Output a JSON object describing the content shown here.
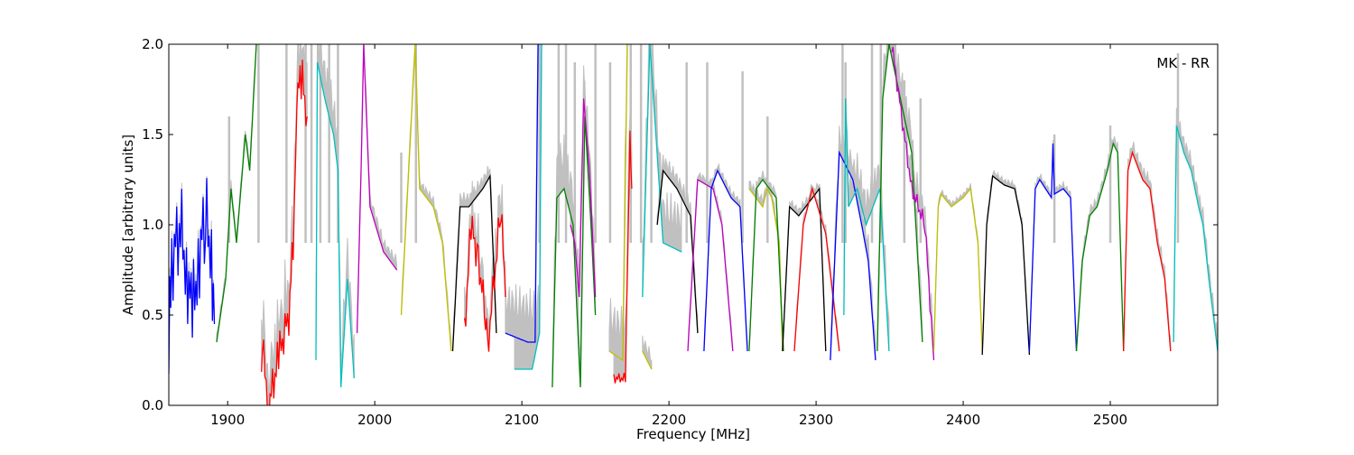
{
  "chart_data": {
    "type": "line",
    "title": "",
    "annotation": "MK - RR",
    "xlabel": "Frequency [MHz]",
    "ylabel": "Amplitude [arbitrary units]",
    "xlim": [
      1860,
      2573
    ],
    "ylim": [
      0.0,
      2.0
    ],
    "xticks": [
      1900,
      2000,
      2100,
      2200,
      2300,
      2400,
      2500
    ],
    "yticks": [
      0.0,
      0.5,
      1.0,
      1.5,
      2.0
    ],
    "xtick_labels": [
      "1900",
      "2000",
      "2100",
      "2200",
      "2300",
      "2400",
      "2500"
    ],
    "ytick_labels": [
      "0.0",
      "0.5",
      "1.0",
      "1.5",
      "2.0"
    ],
    "grid": false,
    "background_color": "#c0c0c0",
    "colors": {
      "b": "#0000ff",
      "g": "#008000",
      "r": "#ff0000",
      "c": "#00bfbf",
      "m": "#bf00bf",
      "y": "#bfbf00",
      "k": "#000000",
      "gray": "#c0c0c0"
    },
    "series": [
      {
        "name": "band-01",
        "color": "b",
        "ripple": 0.25,
        "excess": 0.05,
        "points": [
          [
            1860,
            0.3
          ],
          [
            1862,
            0.8
          ],
          [
            1868,
            1.0
          ],
          [
            1872,
            0.75
          ],
          [
            1876,
            0.5
          ],
          [
            1880,
            0.8
          ],
          [
            1885,
            1.05
          ],
          [
            1889,
            0.85
          ],
          [
            1891,
            0.45
          ]
        ]
      },
      {
        "name": "band-02",
        "color": "g",
        "ripple": 0,
        "excess": 0.05,
        "points": [
          [
            1892.5,
            0.35
          ],
          [
            1898.7,
            0.7
          ],
          [
            1902.3,
            1.2
          ],
          [
            1906,
            0.9
          ],
          [
            1912,
            1.5
          ],
          [
            1915,
            1.3
          ],
          [
            1919.5,
            2.0
          ]
        ]
      },
      {
        "name": "band-03",
        "color": "r",
        "ripple": 0.12,
        "excess": 0.3,
        "points": [
          [
            1923,
            0.3
          ],
          [
            1924.4,
            0.25
          ],
          [
            1928,
            0.0
          ],
          [
            1935.5,
            0.3
          ],
          [
            1941.6,
            0.5
          ],
          [
            1945.3,
            1.0
          ],
          [
            1947,
            1.75
          ],
          [
            1950.8,
            1.8
          ],
          [
            1954,
            1.6
          ]
        ]
      },
      {
        "name": "band-04",
        "color": "c",
        "ripple": 0,
        "excess": 0.25,
        "points": [
          [
            1960,
            0.25
          ],
          [
            1961,
            1.9
          ],
          [
            1966,
            1.7
          ],
          [
            1972,
            1.5
          ],
          [
            1975,
            1.3
          ],
          [
            1977,
            0.1
          ],
          [
            1981.5,
            0.7
          ],
          [
            1986,
            0.15
          ]
        ]
      },
      {
        "name": "band-05",
        "color": "m",
        "ripple": 0,
        "excess": 0.08,
        "points": [
          [
            1988,
            0.4
          ],
          [
            1990.7,
            1.3
          ],
          [
            1992.5,
            2.0
          ],
          [
            1996.8,
            1.1
          ],
          [
            2006,
            0.85
          ],
          [
            2015,
            0.75
          ]
        ]
      },
      {
        "name": "band-06",
        "color": "y",
        "ripple": 0,
        "excess": 0.06,
        "points": [
          [
            2018,
            0.5
          ],
          [
            2027.5,
            2.0
          ],
          [
            2030.5,
            1.2
          ],
          [
            2039.8,
            1.1
          ],
          [
            2046,
            0.9
          ],
          [
            2052,
            0.3
          ]
        ]
      },
      {
        "name": "band-07",
        "color": "k",
        "ripple": 0,
        "excess": 0.08,
        "points": [
          [
            2053,
            0.3
          ],
          [
            2058,
            1.1
          ],
          [
            2064,
            1.1
          ],
          [
            2073.5,
            1.2
          ],
          [
            2078.4,
            1.27
          ],
          [
            2082.7,
            0.4
          ]
        ]
      },
      {
        "name": "band-08",
        "color": "r",
        "ripple": 0.1,
        "excess": 0.2,
        "points": [
          [
            2061,
            0.4
          ],
          [
            2065.5,
            1.0
          ],
          [
            2070.4,
            0.8
          ],
          [
            2075.3,
            0.5
          ],
          [
            2076.6,
            0.3
          ],
          [
            2085.8,
            1.1
          ],
          [
            2088.8,
            0.6
          ]
        ]
      },
      {
        "name": "band-09",
        "color": "b",
        "ripple": 0,
        "excess": 0.3,
        "points": [
          [
            2088.8,
            0.4
          ],
          [
            2104,
            0.35
          ],
          [
            2109,
            0.35
          ],
          [
            2111,
            2.0
          ]
        ]
      },
      {
        "name": "band-10",
        "color": "c",
        "ripple": 0,
        "excess": 0.35,
        "points": [
          [
            2095,
            0.2
          ],
          [
            2107,
            0.2
          ],
          [
            2112,
            0.4
          ],
          [
            2113.4,
            2.0
          ]
        ]
      },
      {
        "name": "band-11",
        "color": "g",
        "ripple": 0,
        "excess": 0.3,
        "points": [
          [
            2120.7,
            0.1
          ],
          [
            2123.8,
            1.15
          ],
          [
            2128.7,
            1.2
          ],
          [
            2134.8,
            1.0
          ],
          [
            2139.8,
            0.1
          ],
          [
            2142.8,
            1.6
          ],
          [
            2147,
            1.0
          ],
          [
            2150,
            0.5
          ]
        ]
      },
      {
        "name": "band-12",
        "color": "m",
        "ripple": 0,
        "excess": 0.2,
        "points": [
          [
            2133,
            1.0
          ],
          [
            2136,
            0.9
          ],
          [
            2139,
            0.6
          ],
          [
            2142,
            1.7
          ],
          [
            2146,
            1.3
          ],
          [
            2150,
            0.6
          ]
        ]
      },
      {
        "name": "band-13",
        "color": "y",
        "ripple": 0,
        "excess": 0.3,
        "points": [
          [
            2159.4,
            0.3
          ],
          [
            2168.6,
            0.25
          ],
          [
            2171.7,
            2.0
          ]
        ]
      },
      {
        "name": "band-14",
        "color": "r",
        "ripple": 0.03,
        "excess": 0.4,
        "points": [
          [
            2162.5,
            0.15
          ],
          [
            2170.4,
            0.15
          ],
          [
            2173.5,
            1.5
          ],
          [
            2174.7,
            1.2
          ]
        ]
      },
      {
        "name": "band-15",
        "color": "c",
        "ripple": 0,
        "excess": 0.3,
        "points": [
          [
            2182,
            0.6
          ],
          [
            2187,
            2.0
          ],
          [
            2196,
            0.9
          ],
          [
            2208.5,
            0.85
          ]
        ]
      },
      {
        "name": "band-16",
        "color": "y",
        "ripple": 0,
        "excess": 0.1,
        "points": [
          [
            2182,
            0.3
          ],
          [
            2188.2,
            0.2
          ]
        ]
      },
      {
        "name": "band-17",
        "color": "k",
        "ripple": 0,
        "excess": 0.1,
        "points": [
          [
            2192,
            1.0
          ],
          [
            2196,
            1.3
          ],
          [
            2205.4,
            1.2
          ],
          [
            2214.6,
            1.05
          ],
          [
            2219.5,
            0.4
          ]
        ]
      },
      {
        "name": "band-18",
        "color": "m",
        "ripple": 0,
        "excess": 0.05,
        "points": [
          [
            2212.8,
            0.3
          ],
          [
            2219.5,
            1.25
          ],
          [
            2230,
            1.2
          ],
          [
            2236,
            1.0
          ],
          [
            2243.4,
            0.3
          ]
        ]
      },
      {
        "name": "band-19",
        "color": "b",
        "ripple": 0,
        "excess": 0.05,
        "points": [
          [
            2223.8,
            0.3
          ],
          [
            2228.7,
            1.2
          ],
          [
            2233,
            1.3
          ],
          [
            2242.2,
            1.15
          ],
          [
            2248.3,
            1.1
          ],
          [
            2253.3,
            0.3
          ]
        ]
      },
      {
        "name": "band-20",
        "color": "y",
        "ripple": 0,
        "excess": 0.06,
        "points": [
          [
            2254.5,
            1.2
          ],
          [
            2263.7,
            1.1
          ],
          [
            2266.8,
            1.2
          ],
          [
            2269.8,
            1.15
          ],
          [
            2275,
            0.9
          ],
          [
            2277.2,
            0.3
          ]
        ]
      },
      {
        "name": "band-21",
        "color": "g",
        "ripple": 0,
        "excess": 0.05,
        "points": [
          [
            2254.5,
            0.3
          ],
          [
            2259.4,
            1.2
          ],
          [
            2263.7,
            1.25
          ],
          [
            2272.9,
            1.15
          ],
          [
            2277.8,
            0.3
          ]
        ]
      },
      {
        "name": "band-22",
        "color": "k",
        "ripple": 0,
        "excess": 0.05,
        "points": [
          [
            2277.2,
            0.3
          ],
          [
            2282,
            1.1
          ],
          [
            2288.2,
            1.05
          ],
          [
            2302.3,
            1.2
          ],
          [
            2306.6,
            0.3
          ]
        ]
      },
      {
        "name": "band-23",
        "color": "r",
        "ripple": 0,
        "excess": 0.05,
        "points": [
          [
            2285.2,
            0.3
          ],
          [
            2291.3,
            1.0
          ],
          [
            2297.4,
            1.2
          ],
          [
            2306.6,
            0.95
          ],
          [
            2315.8,
            0.3
          ]
        ]
      },
      {
        "name": "band-24",
        "color": "b",
        "ripple": 0,
        "excess": 0.15,
        "points": [
          [
            2309.7,
            0.25
          ],
          [
            2315.8,
            1.4
          ],
          [
            2325,
            1.25
          ],
          [
            2331,
            1.0
          ],
          [
            2335.5,
            0.8
          ],
          [
            2340.4,
            0.25
          ]
        ]
      },
      {
        "name": "band-25",
        "color": "c",
        "ripple": 0,
        "excess": 0.2,
        "points": [
          [
            2318.9,
            0.5
          ],
          [
            2320,
            1.7
          ],
          [
            2322,
            1.1
          ],
          [
            2328,
            1.2
          ],
          [
            2334,
            1.0
          ],
          [
            2343.4,
            1.2
          ],
          [
            2349.6,
            0.3
          ]
        ]
      },
      {
        "name": "band-26",
        "color": "g",
        "ripple": 0,
        "excess": 0.2,
        "points": [
          [
            2341.6,
            0.3
          ],
          [
            2345.3,
            1.7
          ],
          [
            2349.6,
            2.0
          ],
          [
            2365,
            1.4
          ],
          [
            2372.3,
            0.35
          ]
        ]
      },
      {
        "name": "band-27",
        "color": "m",
        "ripple": 0.05,
        "excess": 0.15,
        "points": [
          [
            2351.4,
            2.0
          ],
          [
            2365,
            1.2
          ],
          [
            2374,
            1.0
          ],
          [
            2380,
            0.25
          ]
        ]
      },
      {
        "name": "band-28",
        "color": "y",
        "ripple": 0,
        "excess": 0.03,
        "points": [
          [
            2380,
            0.3
          ],
          [
            2383,
            1.1
          ],
          [
            2385,
            1.17
          ],
          [
            2392,
            1.1
          ],
          [
            2400,
            1.15
          ],
          [
            2405,
            1.2
          ],
          [
            2410,
            0.9
          ],
          [
            2413,
            0.3
          ]
        ]
      },
      {
        "name": "band-29",
        "color": "k",
        "ripple": 0,
        "excess": 0.04,
        "points": [
          [
            2413,
            0.28
          ],
          [
            2416,
            1.0
          ],
          [
            2420,
            1.27
          ],
          [
            2428,
            1.22
          ],
          [
            2435,
            1.2
          ],
          [
            2440,
            1.0
          ],
          [
            2445,
            0.28
          ]
        ]
      },
      {
        "name": "band-30",
        "color": "b",
        "ripple": 0,
        "excess": 0.04,
        "points": [
          [
            2445,
            0.3
          ],
          [
            2449,
            1.2
          ],
          [
            2452,
            1.25
          ],
          [
            2460,
            1.15
          ],
          [
            2461,
            1.45
          ],
          [
            2462,
            1.17
          ],
          [
            2468,
            1.2
          ],
          [
            2473,
            1.15
          ],
          [
            2477,
            0.3
          ]
        ]
      },
      {
        "name": "band-31",
        "color": "g",
        "ripple": 0,
        "excess": 0.06,
        "points": [
          [
            2477,
            0.3
          ],
          [
            2481,
            0.8
          ],
          [
            2486,
            1.05
          ],
          [
            2491,
            1.1
          ],
          [
            2498,
            1.3
          ],
          [
            2502,
            1.45
          ],
          [
            2505,
            1.4
          ],
          [
            2509,
            0.3
          ]
        ]
      },
      {
        "name": "band-32",
        "color": "r",
        "ripple": 0,
        "excess": 0.08,
        "points": [
          [
            2509,
            0.3
          ],
          [
            2512,
            1.3
          ],
          [
            2515,
            1.4
          ],
          [
            2522,
            1.25
          ],
          [
            2527,
            1.2
          ],
          [
            2532,
            0.9
          ],
          [
            2537,
            0.7
          ],
          [
            2541,
            0.3
          ]
        ]
      },
      {
        "name": "band-33",
        "color": "c",
        "ripple": 0,
        "excess": 0.1,
        "points": [
          [
            2543,
            0.35
          ],
          [
            2545,
            1.55
          ],
          [
            2550,
            1.4
          ],
          [
            2555,
            1.3
          ],
          [
            2560,
            1.1
          ],
          [
            2563,
            1.0
          ],
          [
            2567,
            0.7
          ],
          [
            2573,
            0.3
          ]
        ]
      }
    ],
    "gray_spikes": [
      [
        1901,
        1.6
      ],
      [
        1921,
        2.0
      ],
      [
        1940,
        2.0
      ],
      [
        1953,
        2.0
      ],
      [
        1957,
        2.0
      ],
      [
        1963,
        2.0
      ],
      [
        1969,
        2.0
      ],
      [
        1975,
        2.0
      ],
      [
        2018,
        1.4
      ],
      [
        2028,
        2.0
      ],
      [
        2112,
        2.0
      ],
      [
        2125,
        2.0
      ],
      [
        2130,
        2.0
      ],
      [
        2136,
        1.9
      ],
      [
        2150,
        2.0
      ],
      [
        2160,
        1.9
      ],
      [
        2174,
        2.0
      ],
      [
        2181,
        2.0
      ],
      [
        2188,
        2.0
      ],
      [
        2212,
        1.9
      ],
      [
        2226,
        1.9
      ],
      [
        2250,
        1.85
      ],
      [
        2267,
        1.6
      ],
      [
        2318,
        2.0
      ],
      [
        2320,
        1.9
      ],
      [
        2338,
        2.0
      ],
      [
        2344,
        2.0
      ],
      [
        2360,
        1.8
      ],
      [
        2371,
        1.7
      ],
      [
        2462,
        1.5
      ],
      [
        2500,
        1.55
      ],
      [
        2546,
        1.95
      ]
    ]
  }
}
